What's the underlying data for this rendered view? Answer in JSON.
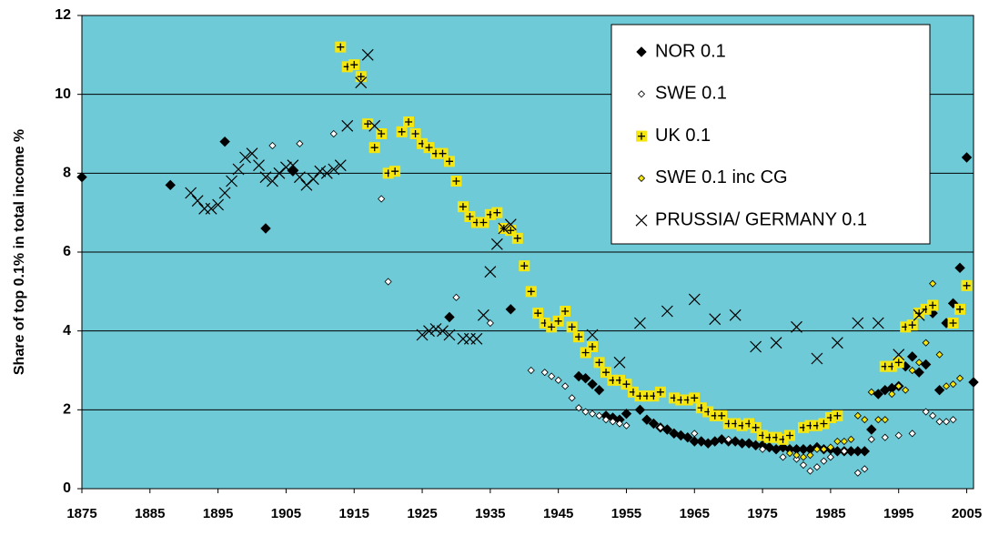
{
  "chart_data": {
    "type": "scatter",
    "y_label": "Share of top 0.1% in total income %",
    "xlim": [
      1875,
      2006
    ],
    "xticks": [
      1875,
      1885,
      1895,
      1905,
      1915,
      1925,
      1935,
      1945,
      1955,
      1965,
      1975,
      1985,
      1995,
      2005
    ],
    "ylim": [
      0,
      12
    ],
    "yticks": [
      0,
      2,
      4,
      6,
      8,
      10,
      12
    ],
    "grid": true,
    "legend": "top-right",
    "background": "#6ecad6",
    "series": [
      {
        "name": "NOR 0.1",
        "color": "#000000",
        "marker": "diamond",
        "x": [
          1875,
          1888,
          1896,
          1902,
          1906,
          1929,
          1938,
          1948,
          1949,
          1950,
          1951,
          1952,
          1953,
          1954,
          1955,
          1957,
          1958,
          1959,
          1960,
          1961,
          1962,
          1963,
          1964,
          1965,
          1966,
          1967,
          1968,
          1969,
          1970,
          1971,
          1972,
          1973,
          1974,
          1975,
          1976,
          1977,
          1978,
          1979,
          1980,
          1981,
          1982,
          1983,
          1984,
          1985,
          1986,
          1987,
          1988,
          1989,
          1990,
          1991,
          1992,
          1993,
          1994,
          1995,
          1996,
          1997,
          1998,
          1999,
          2000,
          2001,
          2002,
          2003,
          2004,
          2005,
          2006
        ],
        "values": [
          7.9,
          7.7,
          8.8,
          6.6,
          8.05,
          4.35,
          4.55,
          2.85,
          2.8,
          2.65,
          2.5,
          1.85,
          1.8,
          1.75,
          1.9,
          2.0,
          1.75,
          1.65,
          1.55,
          1.5,
          1.4,
          1.35,
          1.3,
          1.2,
          1.2,
          1.15,
          1.2,
          1.25,
          1.2,
          1.2,
          1.15,
          1.15,
          1.1,
          1.1,
          1.05,
          1.0,
          1.05,
          1.0,
          1.0,
          1.0,
          1.0,
          1.05,
          1.0,
          1.0,
          0.95,
          0.95,
          0.95,
          0.95,
          0.95,
          1.5,
          2.4,
          2.5,
          2.55,
          2.6,
          3.1,
          3.35,
          2.95,
          3.15,
          4.45,
          2.5,
          4.2,
          4.7,
          5.6,
          8.4,
          2.7
        ]
      },
      {
        "name": "SWE 0.1",
        "color": "#ffffff",
        "marker": "diamond-small",
        "x": [
          1903,
          1907,
          1912,
          1919,
          1920,
          1930,
          1935,
          1941,
          1943,
          1944,
          1945,
          1946,
          1947,
          1948,
          1949,
          1950,
          1951,
          1952,
          1953,
          1954,
          1955,
          1960,
          1965,
          1970,
          1975,
          1978,
          1980,
          1981,
          1982,
          1983,
          1984,
          1985,
          1987,
          1989,
          1990,
          1991,
          1993,
          1995,
          1997,
          1999,
          2000,
          2001,
          2002,
          2003
        ],
        "values": [
          8.7,
          8.75,
          9.0,
          7.35,
          5.25,
          4.85,
          4.2,
          3.0,
          2.95,
          2.85,
          2.75,
          2.6,
          2.3,
          2.05,
          1.95,
          1.9,
          1.85,
          1.75,
          1.7,
          1.65,
          1.6,
          1.55,
          1.4,
          1.25,
          1.0,
          0.8,
          0.75,
          0.6,
          0.45,
          0.55,
          0.7,
          0.8,
          0.95,
          0.4,
          0.5,
          1.25,
          1.3,
          1.35,
          1.4,
          1.95,
          1.85,
          1.7,
          1.7,
          1.75
        ]
      },
      {
        "name": "UK 0.1",
        "color": "#f5e60f",
        "marker": "square-plus",
        "x": [
          1913,
          1914,
          1915,
          1916,
          1917,
          1918,
          1919,
          1920,
          1921,
          1922,
          1923,
          1924,
          1925,
          1926,
          1927,
          1928,
          1929,
          1930,
          1931,
          1932,
          1933,
          1934,
          1935,
          1936,
          1937,
          1938,
          1939,
          1940,
          1941,
          1942,
          1943,
          1944,
          1945,
          1946,
          1947,
          1948,
          1949,
          1950,
          1951,
          1952,
          1953,
          1954,
          1955,
          1956,
          1957,
          1958,
          1959,
          1960,
          1962,
          1963,
          1964,
          1965,
          1966,
          1967,
          1968,
          1969,
          1970,
          1971,
          1972,
          1973,
          1974,
          1975,
          1976,
          1977,
          1978,
          1979,
          1981,
          1982,
          1983,
          1984,
          1985,
          1986,
          1993,
          1994,
          1995,
          1996,
          1997,
          1998,
          1999,
          2000,
          2003,
          2004,
          2005
        ],
        "values": [
          11.2,
          10.7,
          10.75,
          10.45,
          9.25,
          8.65,
          9.0,
          8.0,
          8.05,
          9.05,
          9.3,
          9.0,
          8.75,
          8.65,
          8.5,
          8.5,
          8.3,
          7.8,
          7.15,
          6.9,
          6.75,
          6.75,
          6.95,
          7.0,
          6.6,
          6.55,
          6.35,
          5.65,
          5.0,
          4.45,
          4.2,
          4.1,
          4.25,
          4.5,
          4.1,
          3.85,
          3.45,
          3.6,
          3.2,
          2.95,
          2.75,
          2.75,
          2.65,
          2.45,
          2.35,
          2.35,
          2.35,
          2.45,
          2.3,
          2.25,
          2.25,
          2.3,
          2.05,
          1.95,
          1.85,
          1.85,
          1.65,
          1.65,
          1.6,
          1.65,
          1.55,
          1.35,
          1.3,
          1.3,
          1.25,
          1.35,
          1.55,
          1.6,
          1.6,
          1.65,
          1.8,
          1.85,
          3.1,
          3.1,
          3.2,
          4.1,
          4.15,
          4.45,
          4.55,
          4.65,
          4.2,
          4.55,
          5.15
        ]
      },
      {
        "name": "SWE 0.1 inc CG",
        "color": "#f5e60f",
        "marker": "diamond-small",
        "x": [
          1979,
          1980,
          1981,
          1982,
          1983,
          1984,
          1985,
          1986,
          1987,
          1988,
          1989,
          1990,
          1991,
          1992,
          1993,
          1994,
          1995,
          1996,
          1997,
          1998,
          1999,
          2000,
          2001,
          2002,
          2003,
          2004
        ],
        "values": [
          0.9,
          0.85,
          0.8,
          0.85,
          1.0,
          1.0,
          1.05,
          1.2,
          1.2,
          1.25,
          1.85,
          1.75,
          2.45,
          1.75,
          1.75,
          2.4,
          2.6,
          2.5,
          3.0,
          3.2,
          3.7,
          5.2,
          3.4,
          2.6,
          2.65,
          2.8
        ]
      },
      {
        "name": "PRUSSIA/ GERMANY 0.1",
        "color": "#000000",
        "marker": "x",
        "x": [
          1891,
          1892,
          1893,
          1894,
          1895,
          1896,
          1897,
          1898,
          1899,
          1900,
          1901,
          1902,
          1903,
          1904,
          1905,
          1906,
          1907,
          1908,
          1909,
          1910,
          1911,
          1912,
          1913,
          1914,
          1916,
          1917,
          1918,
          1925,
          1926,
          1927,
          1928,
          1929,
          1931,
          1932,
          1933,
          1934,
          1935,
          1936,
          1937,
          1938,
          1950,
          1954,
          1957,
          1961,
          1965,
          1968,
          1971,
          1974,
          1977,
          1980,
          1983,
          1986,
          1989,
          1992,
          1995,
          1998
        ],
        "values": [
          7.5,
          7.3,
          7.1,
          7.1,
          7.2,
          7.5,
          7.8,
          8.1,
          8.4,
          8.5,
          8.2,
          7.9,
          7.8,
          8.0,
          8.15,
          8.2,
          7.9,
          7.7,
          7.85,
          8.05,
          8.0,
          8.1,
          8.2,
          9.2,
          10.3,
          11.0,
          9.2,
          3.9,
          4.0,
          4.05,
          4.0,
          3.9,
          3.8,
          3.8,
          3.8,
          4.4,
          5.5,
          6.2,
          6.6,
          6.7,
          3.9,
          3.2,
          4.2,
          4.5,
          4.8,
          4.3,
          4.4,
          3.6,
          3.7,
          4.1,
          3.3,
          3.7,
          4.2,
          4.2,
          3.4,
          4.4
        ]
      }
    ]
  }
}
